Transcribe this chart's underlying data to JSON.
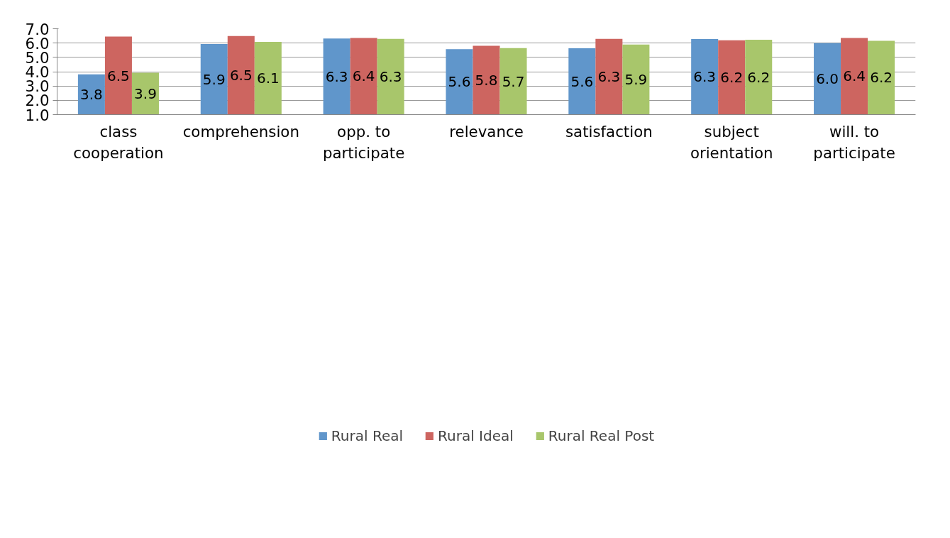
{
  "chart_data": {
    "type": "bar",
    "categories": [
      "class cooperation",
      "comprehension",
      "opp. to participate",
      "relevance",
      "satisfaction",
      "subject orientation",
      "will. to participate"
    ],
    "series": [
      {
        "name": "Rural Real",
        "color": "#6096cb",
        "values": [
          3.81,
          5.94,
          6.32,
          5.58,
          5.64,
          6.28,
          5.99
        ],
        "value_labels": [
          "3.8",
          "5.9",
          "6.3",
          "5.6",
          "5.6",
          "6.3",
          "6.0"
        ]
      },
      {
        "name": "Rural Ideal",
        "color": "#cd6560",
        "values": [
          6.45,
          6.49,
          6.36,
          5.81,
          6.29,
          6.19,
          6.36
        ],
        "value_labels": [
          "6.5",
          "6.5",
          "6.4",
          "5.8",
          "6.3",
          "6.2",
          "6.4"
        ]
      },
      {
        "name": "Rural Real Post",
        "color": "#a8c66b",
        "values": [
          3.92,
          6.08,
          6.29,
          5.65,
          5.9,
          6.23,
          6.16
        ],
        "value_labels": [
          "3.9",
          "6.1",
          "6.3",
          "5.7",
          "5.9",
          "6.2",
          "6.2"
        ]
      }
    ],
    "ylim": [
      1,
      7
    ],
    "yticks": [
      {
        "value": 1,
        "label": "1.0"
      },
      {
        "value": 2,
        "label": "2.0"
      },
      {
        "value": 3,
        "label": "3.0"
      },
      {
        "value": 4,
        "label": "4.0"
      },
      {
        "value": 5,
        "label": "5.0"
      },
      {
        "value": 6,
        "label": "6.0"
      },
      {
        "value": 7,
        "label": "7.0"
      }
    ],
    "grid": "y",
    "legend": "bottom"
  }
}
